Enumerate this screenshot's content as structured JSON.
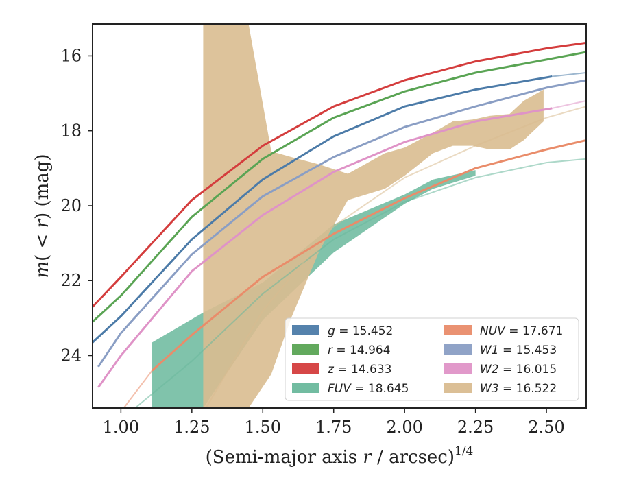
{
  "chart_data": {
    "type": "line",
    "xlabel": "(Semi-major axis r / arcsec)^{1/4}",
    "ylabel": "m(< r) (mag)",
    "xlim": [
      0.9,
      2.64
    ],
    "ylim": [
      25.4,
      15.15
    ],
    "y_inverted": true,
    "xticks": [
      1.0,
      1.25,
      1.5,
      1.75,
      2.0,
      2.25,
      2.5
    ],
    "xtick_labels": [
      "1.00",
      "1.25",
      "1.50",
      "1.75",
      "2.00",
      "2.25",
      "2.50"
    ],
    "yticks": [
      16,
      18,
      20,
      22,
      24
    ],
    "ytick_labels": [
      "16",
      "18",
      "20",
      "22",
      "24"
    ],
    "legend_position": "lower-right",
    "series": [
      {
        "name": "g = 15.452",
        "color": "#4c7ba8",
        "kind": "curve",
        "x": [
          0.9,
          1.0,
          1.25,
          1.5,
          1.75,
          2.0,
          2.25,
          2.52
        ],
        "y": [
          23.65,
          22.95,
          20.9,
          19.3,
          18.15,
          17.35,
          16.9,
          16.55
        ],
        "x_faint": [
          2.52,
          2.64
        ],
        "y_faint": [
          16.55,
          16.45
        ]
      },
      {
        "name": "r = 14.964",
        "color": "#5aa454",
        "kind": "curve",
        "x": [
          0.9,
          1.0,
          1.25,
          1.5,
          1.75,
          2.0,
          2.25,
          2.5,
          2.64
        ],
        "y": [
          23.1,
          22.4,
          20.3,
          18.75,
          17.65,
          16.95,
          16.45,
          16.1,
          15.9
        ]
      },
      {
        "name": "z = 14.633",
        "color": "#d43d3d",
        "kind": "curve",
        "x": [
          0.9,
          1.0,
          1.25,
          1.5,
          1.75,
          2.0,
          2.25,
          2.5,
          2.64
        ],
        "y": [
          22.7,
          21.9,
          19.85,
          18.4,
          17.35,
          16.65,
          16.15,
          15.8,
          15.65
        ]
      },
      {
        "name": "FUV = 18.645",
        "color": "#6ab89c",
        "kind": "band",
        "x": [
          1.11,
          1.29,
          1.5,
          1.75,
          2.0,
          2.1,
          2.25
        ],
        "y_upper": [
          23.65,
          22.85,
          22.05,
          20.5,
          19.7,
          19.3,
          19.05
        ],
        "y_lower": [
          25.4,
          25.4,
          23.05,
          21.25,
          19.95,
          19.55,
          19.2
        ],
        "x_faint": [
          1.05,
          1.25,
          1.5,
          1.75,
          2.0,
          2.25,
          2.5,
          2.64
        ],
        "y_faint": [
          25.4,
          24.15,
          22.35,
          20.9,
          19.9,
          19.25,
          18.85,
          18.75
        ]
      },
      {
        "name": "NUV = 17.671",
        "color": "#e98c6a",
        "kind": "curve",
        "x": [
          1.11,
          1.25,
          1.5,
          1.75,
          2.0,
          2.25,
          2.5,
          2.64
        ],
        "y": [
          24.4,
          23.45,
          21.9,
          20.75,
          19.8,
          19.0,
          18.5,
          18.25
        ],
        "x_faint": [
          1.01,
          1.11
        ],
        "y_faint": [
          25.4,
          24.4
        ]
      },
      {
        "name": "W1 = 15.453",
        "color": "#8a9ec4",
        "kind": "curve",
        "x": [
          0.92,
          1.0,
          1.25,
          1.5,
          1.75,
          2.0,
          2.25,
          2.5,
          2.64
        ],
        "y": [
          24.3,
          23.4,
          21.3,
          19.75,
          18.7,
          17.9,
          17.35,
          16.85,
          16.65
        ]
      },
      {
        "name": "W2 = 16.015",
        "color": "#df93c7",
        "kind": "curve",
        "x": [
          0.92,
          1.0,
          1.25,
          1.5,
          1.75,
          2.0,
          2.25,
          2.52
        ],
        "y": [
          24.85,
          24.0,
          21.75,
          20.25,
          19.1,
          18.3,
          17.75,
          17.4
        ],
        "x_faint": [
          2.52,
          2.64
        ],
        "y_faint": [
          17.4,
          17.2
        ]
      },
      {
        "name": "W3 = 16.522",
        "color": "#d9bc90",
        "kind": "band",
        "x": [
          1.29,
          1.45,
          1.53,
          1.6,
          1.7,
          1.8,
          1.93,
          2.0,
          2.1,
          2.17,
          2.24,
          2.3,
          2.37,
          2.42,
          2.49
        ],
        "y_upper": [
          15.15,
          15.15,
          18.55,
          18.7,
          18.9,
          19.15,
          18.6,
          18.45,
          18.05,
          17.75,
          17.7,
          17.6,
          17.55,
          17.2,
          16.9
        ],
        "y_lower": [
          25.4,
          25.4,
          24.5,
          23.0,
          21.2,
          19.85,
          19.55,
          19.2,
          18.6,
          18.4,
          18.4,
          18.5,
          18.5,
          18.25,
          17.75
        ],
        "x_faint": [
          1.3,
          1.5,
          1.75,
          2.0,
          2.25,
          2.5,
          2.64
        ],
        "y_faint": [
          25.4,
          22.8,
          20.55,
          19.25,
          18.4,
          17.65,
          17.35
        ]
      }
    ]
  }
}
